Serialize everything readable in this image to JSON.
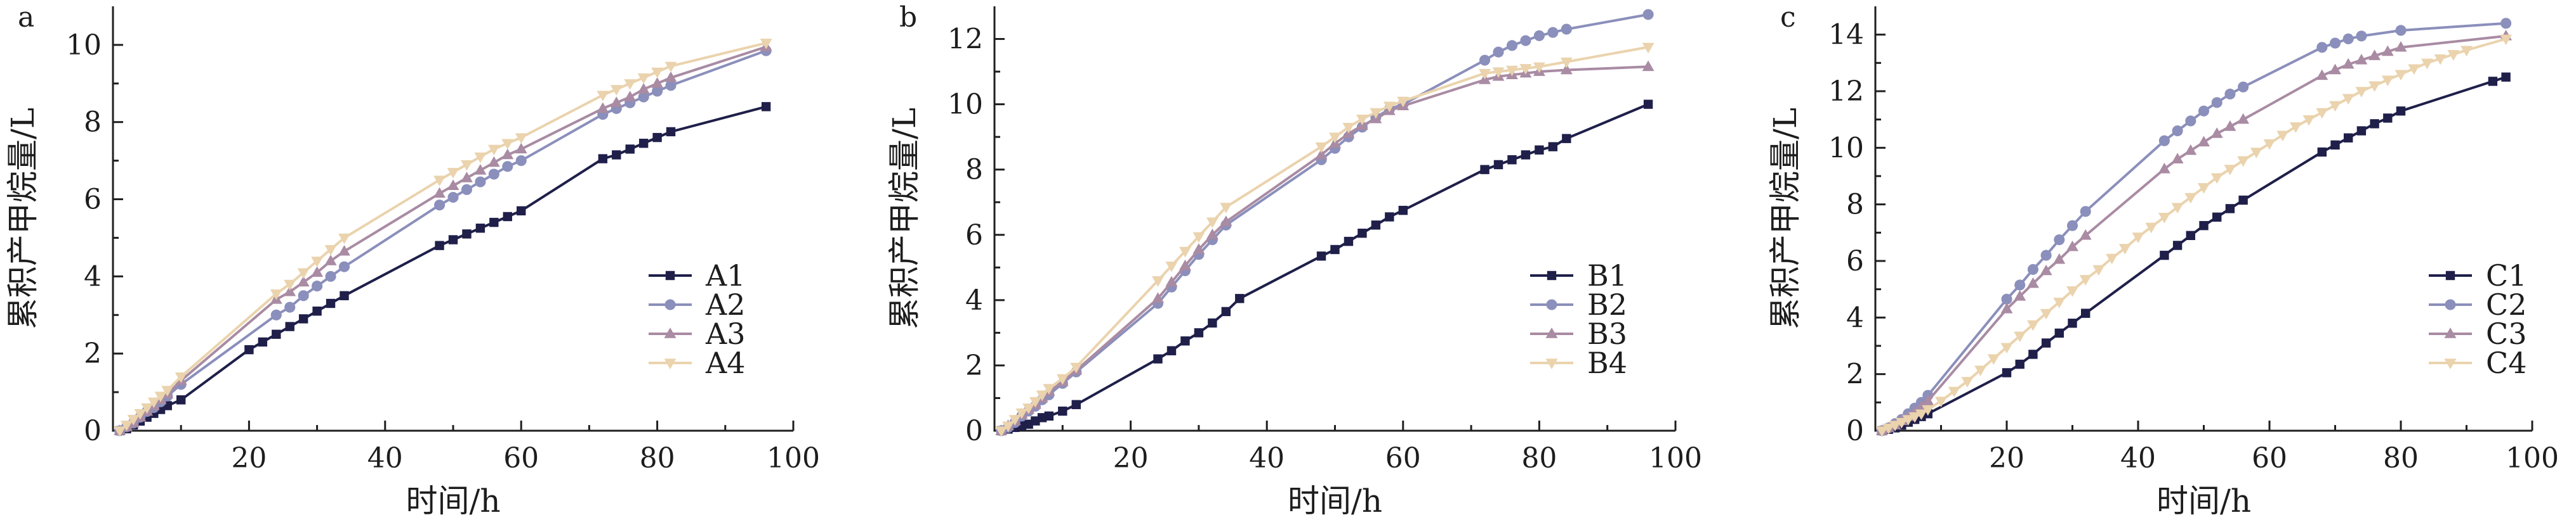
{
  "chart_data": [
    {
      "panel_letter": "a",
      "type": "line",
      "xlabel": "时间/h",
      "ylabel": "累积产甲烷量/L",
      "xlim": [
        0,
        100
      ],
      "ylim": [
        0,
        11
      ],
      "xticks": [
        20,
        40,
        60,
        80,
        100
      ],
      "yticks": [
        0,
        2,
        4,
        6,
        8,
        10
      ],
      "legend_position": "bottom-right",
      "series": [
        {
          "name": "A1",
          "color": "#1f1f4a",
          "marker": "square",
          "x": [
            1,
            2,
            3,
            4,
            5,
            6,
            7,
            8,
            10,
            20,
            22,
            24,
            26,
            28,
            30,
            32,
            34,
            48,
            50,
            52,
            54,
            56,
            58,
            60,
            72,
            74,
            76,
            78,
            80,
            82,
            96
          ],
          "y": [
            0,
            0.05,
            0.15,
            0.25,
            0.35,
            0.45,
            0.55,
            0.65,
            0.8,
            2.1,
            2.3,
            2.5,
            2.7,
            2.9,
            3.1,
            3.3,
            3.5,
            4.8,
            4.95,
            5.1,
            5.25,
            5.4,
            5.55,
            5.7,
            7.05,
            7.15,
            7.3,
            7.45,
            7.6,
            7.75,
            8.4
          ]
        },
        {
          "name": "A2",
          "color": "#8b8fbb",
          "marker": "circle",
          "x": [
            1,
            2,
            3,
            4,
            5,
            6,
            7,
            8,
            10,
            24,
            26,
            28,
            30,
            32,
            34,
            48,
            50,
            52,
            54,
            56,
            58,
            60,
            72,
            74,
            76,
            78,
            80,
            82,
            96
          ],
          "y": [
            0,
            0.1,
            0.2,
            0.35,
            0.5,
            0.6,
            0.75,
            0.9,
            1.2,
            3.0,
            3.2,
            3.5,
            3.75,
            4.0,
            4.25,
            5.85,
            6.05,
            6.25,
            6.45,
            6.65,
            6.85,
            7.0,
            8.2,
            8.35,
            8.5,
            8.65,
            8.8,
            8.95,
            9.85
          ]
        },
        {
          "name": "A3",
          "color": "#a98ba3",
          "marker": "triangle-up",
          "x": [
            1,
            2,
            3,
            4,
            5,
            6,
            7,
            8,
            10,
            24,
            26,
            28,
            30,
            32,
            34,
            48,
            50,
            52,
            54,
            56,
            58,
            60,
            72,
            74,
            76,
            78,
            80,
            82,
            96
          ],
          "y": [
            0,
            0.1,
            0.2,
            0.35,
            0.5,
            0.65,
            0.8,
            0.95,
            1.3,
            3.4,
            3.6,
            3.85,
            4.1,
            4.4,
            4.65,
            6.15,
            6.35,
            6.55,
            6.75,
            6.95,
            7.15,
            7.3,
            8.35,
            8.5,
            8.65,
            8.85,
            9.0,
            9.15,
            9.95
          ]
        },
        {
          "name": "A4",
          "color": "#ead3ad",
          "marker": "triangle-down",
          "x": [
            1,
            2,
            3,
            4,
            5,
            6,
            7,
            8,
            10,
            24,
            26,
            28,
            30,
            32,
            34,
            48,
            50,
            52,
            54,
            56,
            58,
            60,
            72,
            74,
            76,
            78,
            80,
            82,
            96
          ],
          "y": [
            0,
            0.15,
            0.3,
            0.45,
            0.6,
            0.75,
            0.9,
            1.05,
            1.4,
            3.55,
            3.8,
            4.1,
            4.4,
            4.7,
            5.0,
            6.5,
            6.7,
            6.9,
            7.1,
            7.3,
            7.45,
            7.6,
            8.7,
            8.85,
            9.0,
            9.15,
            9.3,
            9.45,
            10.05
          ]
        }
      ]
    },
    {
      "panel_letter": "b",
      "type": "line",
      "xlabel": "时间/h",
      "ylabel": "累积产甲烷量/L",
      "xlim": [
        0,
        100
      ],
      "ylim": [
        0,
        13
      ],
      "xticks": [
        20,
        40,
        60,
        80,
        100
      ],
      "yticks": [
        0,
        2,
        4,
        6,
        8,
        10,
        12
      ],
      "legend_position": "bottom-right",
      "series": [
        {
          "name": "B1",
          "color": "#1f1f4a",
          "marker": "square",
          "x": [
            1,
            2,
            3,
            4,
            5,
            6,
            7,
            8,
            10,
            12,
            24,
            26,
            28,
            30,
            32,
            34,
            36,
            48,
            50,
            52,
            54,
            56,
            58,
            60,
            72,
            74,
            76,
            78,
            80,
            82,
            84,
            96
          ],
          "y": [
            0,
            0.05,
            0.1,
            0.15,
            0.2,
            0.3,
            0.4,
            0.45,
            0.6,
            0.8,
            2.2,
            2.45,
            2.75,
            3.0,
            3.3,
            3.65,
            4.05,
            5.35,
            5.55,
            5.8,
            6.05,
            6.3,
            6.55,
            6.75,
            8.0,
            8.15,
            8.3,
            8.45,
            8.6,
            8.7,
            8.95,
            10.0
          ]
        },
        {
          "name": "B2",
          "color": "#8b8fbb",
          "marker": "circle",
          "x": [
            1,
            2,
            3,
            4,
            5,
            6,
            7,
            8,
            10,
            12,
            24,
            26,
            28,
            30,
            32,
            34,
            48,
            50,
            52,
            54,
            56,
            58,
            60,
            72,
            74,
            76,
            78,
            80,
            82,
            84,
            96
          ],
          "y": [
            0,
            0.1,
            0.25,
            0.45,
            0.6,
            0.75,
            0.95,
            1.1,
            1.45,
            1.8,
            3.9,
            4.4,
            4.9,
            5.4,
            5.85,
            6.3,
            8.3,
            8.65,
            9.0,
            9.3,
            9.6,
            9.85,
            10.0,
            11.35,
            11.6,
            11.8,
            11.95,
            12.1,
            12.2,
            12.3,
            12.75
          ]
        },
        {
          "name": "B3",
          "color": "#a98ba3",
          "marker": "triangle-up",
          "x": [
            1,
            2,
            3,
            4,
            5,
            6,
            7,
            8,
            10,
            12,
            24,
            26,
            28,
            30,
            32,
            34,
            48,
            50,
            52,
            54,
            56,
            58,
            60,
            72,
            74,
            76,
            78,
            80,
            84,
            96
          ],
          "y": [
            0,
            0.15,
            0.3,
            0.5,
            0.65,
            0.8,
            1.0,
            1.2,
            1.5,
            1.85,
            4.05,
            4.55,
            5.05,
            5.55,
            6.0,
            6.4,
            8.45,
            8.8,
            9.1,
            9.35,
            9.55,
            9.8,
            9.95,
            10.75,
            10.85,
            10.9,
            10.95,
            11.0,
            11.05,
            11.15
          ]
        },
        {
          "name": "B4",
          "color": "#ead3ad",
          "marker": "triangle-down",
          "x": [
            1,
            2,
            3,
            4,
            5,
            6,
            7,
            8,
            10,
            12,
            24,
            26,
            28,
            30,
            32,
            34,
            48,
            50,
            52,
            54,
            56,
            58,
            60,
            72,
            74,
            76,
            78,
            80,
            84,
            96
          ],
          "y": [
            0,
            0.15,
            0.35,
            0.55,
            0.7,
            0.9,
            1.1,
            1.3,
            1.6,
            1.95,
            4.6,
            5.05,
            5.5,
            5.95,
            6.4,
            6.85,
            8.7,
            9.0,
            9.3,
            9.55,
            9.75,
            9.95,
            10.1,
            10.95,
            11.0,
            11.05,
            11.1,
            11.15,
            11.3,
            11.75
          ]
        }
      ]
    },
    {
      "panel_letter": "c",
      "type": "line",
      "xlabel": "时间/h",
      "ylabel": "累积产甲烷量/L",
      "xlim": [
        0,
        100
      ],
      "ylim": [
        0,
        15
      ],
      "xticks": [
        20,
        40,
        60,
        80,
        100
      ],
      "yticks": [
        0,
        2,
        4,
        6,
        8,
        10,
        12,
        14
      ],
      "legend_position": "bottom-right",
      "series": [
        {
          "name": "C1",
          "color": "#1f1f4a",
          "marker": "square",
          "x": [
            1,
            2,
            3,
            4,
            5,
            6,
            7,
            8,
            20,
            22,
            24,
            26,
            28,
            30,
            32,
            44,
            46,
            48,
            50,
            52,
            54,
            56,
            68,
            70,
            72,
            74,
            76,
            78,
            80,
            94,
            96
          ],
          "y": [
            0,
            0.05,
            0.1,
            0.2,
            0.3,
            0.4,
            0.5,
            0.6,
            2.05,
            2.35,
            2.7,
            3.1,
            3.45,
            3.8,
            4.15,
            6.2,
            6.55,
            6.9,
            7.25,
            7.55,
            7.85,
            8.15,
            9.85,
            10.1,
            10.35,
            10.6,
            10.85,
            11.05,
            11.3,
            12.35,
            12.5
          ]
        },
        {
          "name": "C2",
          "color": "#8b8fbb",
          "marker": "circle",
          "x": [
            1,
            2,
            3,
            4,
            5,
            6,
            7,
            8,
            20,
            22,
            24,
            26,
            28,
            30,
            32,
            44,
            46,
            48,
            50,
            52,
            54,
            56,
            68,
            70,
            72,
            74,
            80,
            96
          ],
          "y": [
            0,
            0.1,
            0.25,
            0.4,
            0.6,
            0.8,
            1.0,
            1.25,
            4.65,
            5.15,
            5.7,
            6.2,
            6.75,
            7.25,
            7.75,
            10.25,
            10.6,
            10.95,
            11.3,
            11.6,
            11.9,
            12.15,
            13.55,
            13.7,
            13.85,
            13.95,
            14.15,
            14.4
          ]
        },
        {
          "name": "C3",
          "color": "#a98ba3",
          "marker": "triangle-up",
          "x": [
            1,
            2,
            3,
            4,
            5,
            6,
            7,
            8,
            20,
            22,
            24,
            26,
            28,
            30,
            32,
            44,
            46,
            48,
            50,
            52,
            54,
            56,
            68,
            70,
            72,
            74,
            76,
            78,
            80,
            96
          ],
          "y": [
            0,
            0.1,
            0.2,
            0.35,
            0.5,
            0.65,
            0.85,
            1.05,
            4.3,
            4.75,
            5.2,
            5.65,
            6.05,
            6.5,
            6.9,
            9.25,
            9.6,
            9.9,
            10.2,
            10.5,
            10.75,
            11.0,
            12.55,
            12.75,
            12.95,
            13.1,
            13.25,
            13.4,
            13.55,
            13.95
          ]
        },
        {
          "name": "C4",
          "color": "#ead3ad",
          "marker": "triangle-down",
          "x": [
            1,
            2,
            3,
            4,
            5,
            6,
            7,
            8,
            10,
            12,
            14,
            16,
            18,
            20,
            22,
            24,
            26,
            28,
            30,
            32,
            34,
            36,
            38,
            40,
            42,
            44,
            46,
            48,
            50,
            52,
            54,
            56,
            58,
            60,
            62,
            64,
            66,
            68,
            70,
            72,
            74,
            76,
            78,
            80,
            82,
            84,
            86,
            88,
            90,
            96
          ],
          "y": [
            0,
            0.1,
            0.2,
            0.3,
            0.4,
            0.5,
            0.6,
            0.75,
            1.05,
            1.4,
            1.75,
            2.15,
            2.55,
            2.95,
            3.35,
            3.75,
            4.15,
            4.55,
            4.95,
            5.35,
            5.7,
            6.1,
            6.45,
            6.85,
            7.2,
            7.55,
            7.9,
            8.25,
            8.6,
            8.95,
            9.25,
            9.55,
            9.85,
            10.15,
            10.45,
            10.75,
            11.0,
            11.25,
            11.5,
            11.75,
            12.0,
            12.2,
            12.4,
            12.6,
            12.8,
            13.0,
            13.15,
            13.3,
            13.45,
            13.85
          ]
        }
      ]
    }
  ]
}
